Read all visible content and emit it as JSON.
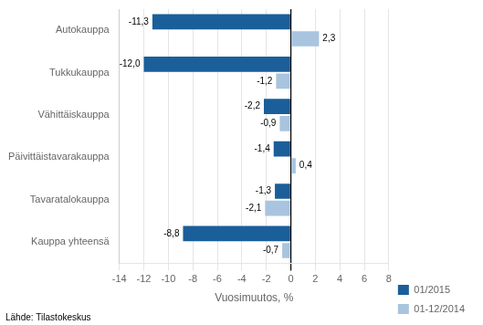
{
  "chart_data": {
    "type": "bar",
    "orientation": "horizontal",
    "categories": [
      "Kauppa yhteensä",
      "Tavaratalokauppa",
      "Päivittäistavarakauppa",
      "Vähittäiskauppa",
      "Tukkukauppa",
      "Autokauppa"
    ],
    "series": [
      {
        "name": "01/2015",
        "color": "#1A5E9A",
        "values": [
          -8.8,
          -1.3,
          -1.4,
          -2.2,
          -12.0,
          -11.3
        ],
        "value_labels": [
          "-8,8",
          "-1,3",
          "-1,4",
          "-2,2",
          "-12,0",
          "-11,3"
        ]
      },
      {
        "name": "01-12/2014",
        "color": "#A8C4DF",
        "values": [
          -0.7,
          -2.1,
          0.4,
          -0.9,
          -1.2,
          2.3
        ],
        "value_labels": [
          "-0,7",
          "-2,1",
          "0,4",
          "-0,9",
          "-1,2",
          "2,3"
        ]
      }
    ],
    "xlabel": "Vuosimuutos, %",
    "xlim": [
      -14,
      8
    ],
    "xticks": [
      -14,
      -12,
      -10,
      -8,
      -6,
      -4,
      -2,
      0,
      2,
      4,
      6,
      8
    ],
    "grid": true,
    "legend": "lower right",
    "data_labels": true,
    "annotations": [
      "Lähde: Tilastokeskus"
    ]
  }
}
